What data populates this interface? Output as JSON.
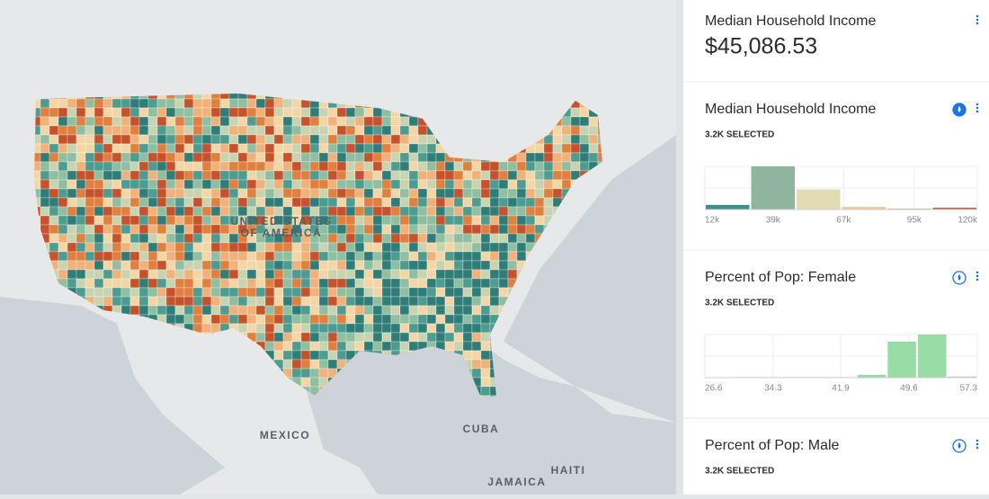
{
  "map": {
    "labels": [
      "UNITED STATES",
      "OF AMERICA",
      "MEXICO",
      "CUBA",
      "JAMAICA",
      "HAITI"
    ]
  },
  "widgets": [
    {
      "title": "Median Household Income",
      "value": "$45,086.53"
    },
    {
      "title": "Median Household Income",
      "subtitle": "3.2K SELECTED",
      "chart_data": {
        "type": "histogram",
        "bins": [
          12000,
          30000,
          48000,
          66000,
          84000,
          102000,
          120000
        ],
        "counts": [
          160,
          1500,
          700,
          90,
          30,
          60
        ],
        "colors": [
          "#3f8f86",
          "#8fb59f",
          "#e2dcb4",
          "#efc99c",
          "#e3a173",
          "#c9592f"
        ],
        "xlim": [
          12000,
          120000
        ],
        "xticks": [
          {
            "value": 12000,
            "label": "12k"
          },
          {
            "value": 39000,
            "label": "39k"
          },
          {
            "value": 67000,
            "label": "67k"
          },
          {
            "value": 95000,
            "label": "95k"
          },
          {
            "value": 120000,
            "label": "120k"
          }
        ]
      }
    },
    {
      "title": "Percent of Pop: Female",
      "subtitle": "3.2K SELECTED",
      "chart_data": {
        "type": "histogram",
        "bins": [
          26.6,
          30.0,
          33.4,
          36.8,
          40.2,
          43.7,
          47.1,
          50.5,
          53.9,
          57.3
        ],
        "counts": [
          0,
          20,
          20,
          20,
          20,
          100,
          1300,
          1560,
          40
        ],
        "color": "#98dca6",
        "xlim": [
          26.6,
          57.3
        ],
        "xticks": [
          26.6,
          34.3,
          41.9,
          49.6,
          57.3
        ]
      }
    },
    {
      "title": "Percent of Pop: Male",
      "subtitle": "3.2K SELECTED"
    }
  ]
}
